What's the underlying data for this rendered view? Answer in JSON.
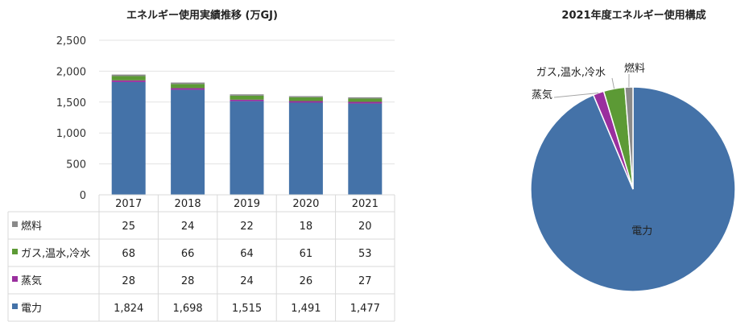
{
  "chart_data": [
    {
      "type": "bar",
      "stacked": true,
      "title": "エネルギー使用実績推移 (万GJ)",
      "categories": [
        "2017",
        "2018",
        "2019",
        "2020",
        "2021"
      ],
      "ylim": [
        0,
        2500
      ],
      "yticks": [
        "0",
        "500",
        "1,000",
        "1,500",
        "2,000",
        "2,500"
      ],
      "grid": true,
      "data_table": true,
      "series": [
        {
          "name": "電力",
          "color": "#4472a8",
          "values": [
            1824,
            1698,
            1515,
            1491,
            1477
          ],
          "display": [
            "1,824",
            "1,698",
            "1,515",
            "1,491",
            "1,477"
          ]
        },
        {
          "name": "蒸気",
          "color": "#9a2f9e",
          "values": [
            28,
            28,
            24,
            26,
            27
          ],
          "display": [
            "28",
            "28",
            "24",
            "26",
            "27"
          ]
        },
        {
          "name": "ガス,温水,冷水",
          "color": "#5c9a35",
          "values": [
            68,
            66,
            64,
            61,
            53
          ],
          "display": [
            "68",
            "66",
            "64",
            "61",
            "53"
          ]
        },
        {
          "name": "燃料",
          "color": "#8a8a8a",
          "values": [
            25,
            24,
            22,
            18,
            20
          ],
          "display": [
            "25",
            "24",
            "22",
            "18",
            "20"
          ]
        }
      ]
    },
    {
      "type": "pie",
      "title": "2021年度エネルギー使用構成",
      "slices": [
        {
          "label": "電力",
          "value": 1477,
          "color": "#4472a8"
        },
        {
          "label": "蒸気",
          "value": 27,
          "color": "#9a2f9e"
        },
        {
          "label": "ガス,温水,冷水",
          "value": 53,
          "color": "#5c9a35"
        },
        {
          "label": "燃料",
          "value": 20,
          "color": "#8a8a8a"
        }
      ]
    }
  ]
}
